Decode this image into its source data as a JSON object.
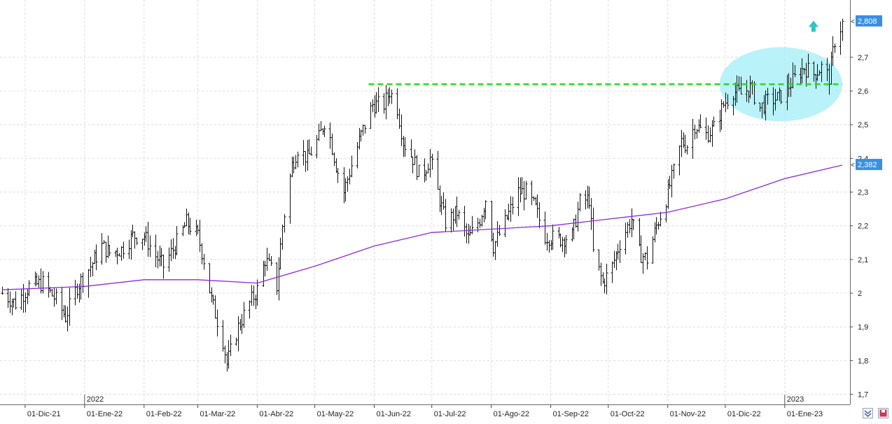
{
  "chart_data": {
    "type": "ohlc",
    "title": "",
    "xlabel": "",
    "ylabel": "",
    "ylim": [
      1.67,
      2.87
    ],
    "y_ticks": [
      1.7,
      1.8,
      1.9,
      2.0,
      2.1,
      2.2,
      2.3,
      2.4,
      2.5,
      2.6,
      2.7
    ],
    "y_tick_labels": [
      "1,7",
      "1,8",
      "1,9",
      "2",
      "2,1",
      "2,2",
      "2,3",
      "2,4",
      "2,5",
      "2,6",
      "2,7"
    ],
    "x_start": "2021-11-19",
    "x_end": "2023-01-31",
    "x_tick_dates": [
      "2021-12-01",
      "2022-01-01",
      "2022-02-01",
      "2022-03-01",
      "2022-04-01",
      "2022-05-01",
      "2022-06-01",
      "2022-07-01",
      "2022-08-01",
      "2022-09-01",
      "2022-10-01",
      "2022-11-01",
      "2022-12-01",
      "2023-01-01"
    ],
    "x_tick_labels": [
      "01-Dic-21",
      "01-Ene-22",
      "01-Feb-22",
      "01-Mar-22",
      "01-Abr-22",
      "01-May-22",
      "01-Jun-22",
      "01-Jul-22",
      "01-Ago-22",
      "01-Sep-22",
      "01-Oct-22",
      "01-Nov-22",
      "01-Dic-22",
      "01-Ene-23"
    ],
    "year_markers": [
      {
        "date": "2022-01-01",
        "label": "2022"
      },
      {
        "date": "2023-01-01",
        "label": "2023"
      }
    ],
    "grid": true,
    "price_anchors": [
      [
        "2021-11-19",
        2.0
      ],
      [
        "2021-11-26",
        1.97
      ],
      [
        "2021-12-03",
        2.02
      ],
      [
        "2021-12-10",
        2.03
      ],
      [
        "2021-12-17",
        1.98
      ],
      [
        "2021-12-22",
        1.93
      ],
      [
        "2021-12-28",
        2.02
      ],
      [
        "2022-01-04",
        2.08
      ],
      [
        "2022-01-10",
        2.14
      ],
      [
        "2022-01-14",
        2.12
      ],
      [
        "2022-01-20",
        2.13
      ],
      [
        "2022-01-26",
        2.17
      ],
      [
        "2022-02-01",
        2.17
      ],
      [
        "2022-02-07",
        2.11
      ],
      [
        "2022-02-11",
        2.08
      ],
      [
        "2022-02-17",
        2.14
      ],
      [
        "2022-02-23",
        2.21
      ],
      [
        "2022-03-01",
        2.17
      ],
      [
        "2022-03-04",
        2.1
      ],
      [
        "2022-03-08",
        1.98
      ],
      [
        "2022-03-11",
        1.92
      ],
      [
        "2022-03-14",
        1.86
      ],
      [
        "2022-03-16",
        1.79
      ],
      [
        "2022-03-22",
        1.9
      ],
      [
        "2022-03-28",
        1.97
      ],
      [
        "2022-04-01",
        2.01
      ],
      [
        "2022-04-05",
        2.1
      ],
      [
        "2022-04-08",
        2.07
      ],
      [
        "2022-04-11",
        2.02
      ],
      [
        "2022-04-14",
        2.2
      ],
      [
        "2022-04-19",
        2.38
      ],
      [
        "2022-04-22",
        2.43
      ],
      [
        "2022-04-27",
        2.4
      ],
      [
        "2022-05-03",
        2.46
      ],
      [
        "2022-05-06",
        2.51
      ],
      [
        "2022-05-09",
        2.46
      ],
      [
        "2022-05-12",
        2.38
      ],
      [
        "2022-05-16",
        2.3
      ],
      [
        "2022-05-20",
        2.38
      ],
      [
        "2022-05-25",
        2.47
      ],
      [
        "2022-05-31",
        2.56
      ],
      [
        "2022-06-06",
        2.56
      ],
      [
        "2022-06-09",
        2.6
      ],
      [
        "2022-06-13",
        2.55
      ],
      [
        "2022-06-16",
        2.45
      ],
      [
        "2022-06-21",
        2.4
      ],
      [
        "2022-06-25",
        2.34
      ],
      [
        "2022-06-30",
        2.4
      ],
      [
        "2022-07-04",
        2.3
      ],
      [
        "2022-07-08",
        2.21
      ],
      [
        "2022-07-14",
        2.24
      ],
      [
        "2022-07-20",
        2.16
      ],
      [
        "2022-07-26",
        2.22
      ],
      [
        "2022-07-29",
        2.28
      ],
      [
        "2022-08-02",
        2.14
      ],
      [
        "2022-08-08",
        2.21
      ],
      [
        "2022-08-15",
        2.3
      ],
      [
        "2022-08-19",
        2.3
      ],
      [
        "2022-08-24",
        2.25
      ],
      [
        "2022-08-29",
        2.17
      ],
      [
        "2022-09-05",
        2.16
      ],
      [
        "2022-09-12",
        2.17
      ],
      [
        "2022-09-16",
        2.27
      ],
      [
        "2022-09-21",
        2.28
      ],
      [
        "2022-09-23",
        2.12
      ],
      [
        "2022-09-28",
        2.03
      ],
      [
        "2022-10-03",
        2.08
      ],
      [
        "2022-10-07",
        2.15
      ],
      [
        "2022-10-13",
        2.22
      ],
      [
        "2022-10-17",
        2.12
      ],
      [
        "2022-10-21",
        2.1
      ],
      [
        "2022-10-26",
        2.2
      ],
      [
        "2022-10-31",
        2.28
      ],
      [
        "2022-11-04",
        2.36
      ],
      [
        "2022-11-08",
        2.45
      ],
      [
        "2022-11-11",
        2.44
      ],
      [
        "2022-11-15",
        2.5
      ],
      [
        "2022-11-21",
        2.47
      ],
      [
        "2022-11-25",
        2.49
      ],
      [
        "2022-11-30",
        2.56
      ],
      [
        "2022-12-05",
        2.6
      ],
      [
        "2022-12-09",
        2.59
      ],
      [
        "2022-12-14",
        2.61
      ],
      [
        "2022-12-19",
        2.55
      ],
      [
        "2022-12-23",
        2.57
      ],
      [
        "2022-12-29",
        2.58
      ],
      [
        "2023-01-05",
        2.63
      ],
      [
        "2023-01-11",
        2.67
      ],
      [
        "2023-01-16",
        2.65
      ],
      [
        "2023-01-20",
        2.67
      ],
      [
        "2023-01-24",
        2.64
      ],
      [
        "2023-01-27",
        2.75
      ],
      [
        "2023-01-31",
        2.8
      ]
    ],
    "ma_anchors": [
      [
        "2021-11-19",
        2.01
      ],
      [
        "2022-01-01",
        2.02
      ],
      [
        "2022-02-01",
        2.04
      ],
      [
        "2022-03-01",
        2.04
      ],
      [
        "2022-04-01",
        2.03
      ],
      [
        "2022-05-01",
        2.08
      ],
      [
        "2022-06-01",
        2.14
      ],
      [
        "2022-07-01",
        2.18
      ],
      [
        "2022-08-01",
        2.19
      ],
      [
        "2022-09-01",
        2.2
      ],
      [
        "2022-10-01",
        2.22
      ],
      [
        "2022-11-01",
        2.24
      ],
      [
        "2022-12-01",
        2.28
      ],
      [
        "2023-01-01",
        2.34
      ],
      [
        "2023-01-31",
        2.38
      ]
    ],
    "resistance_level": 2.62,
    "resistance_start": "2022-06-01",
    "resistance_end": "2023-01-31",
    "highlight_ellipse": {
      "date_from": "2022-11-28",
      "date_to": "2023-01-31",
      "value_from": 2.51,
      "value_to": 2.73
    },
    "up_arrow": {
      "date": "2023-01-16",
      "value": 2.79
    },
    "last_price_label": "2,808",
    "ma_last_label": "2,382",
    "colors": {
      "bars": "#111111",
      "moving_average": "#8a2be2",
      "resistance": "#22dd22",
      "highlight": "#aef0f8",
      "arrow": "#33c3c3",
      "price_tag": "#3a8fe0",
      "grid": "#dcdcdc"
    },
    "series": [
      {
        "name": "",
        "kind": "ohlc"
      },
      {
        "name": "",
        "kind": "moving_average"
      }
    ]
  }
}
